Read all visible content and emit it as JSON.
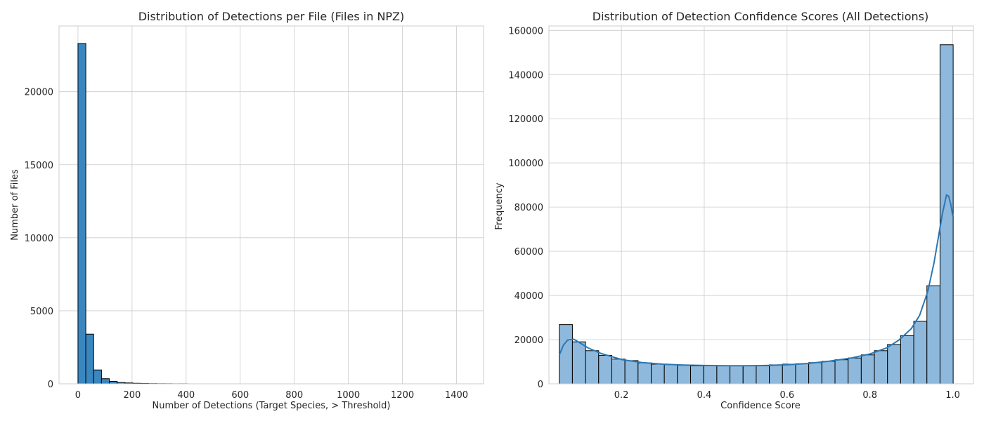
{
  "chart_data": [
    {
      "type": "bar",
      "subtype": "histogram",
      "title": "Distribution of Detections per File (Files in NPZ)",
      "xlabel": "Number of Detections (Target Species, > Threshold)",
      "ylabel": "Number of Files",
      "xlim": [
        -70,
        1500
      ],
      "ylim": [
        0,
        24500
      ],
      "xticks": [
        0,
        200,
        400,
        600,
        800,
        1000,
        1200,
        1400
      ],
      "xtick_labels": [
        "0",
        "200",
        "400",
        "600",
        "800",
        "1000",
        "1200",
        "1400"
      ],
      "yticks": [
        0,
        5000,
        10000,
        15000,
        20000
      ],
      "ytick_labels": [
        "0",
        "5000",
        "10000",
        "15000",
        "20000"
      ],
      "bin_width": 29,
      "bins": [
        {
          "x0": 0,
          "x1": 29,
          "count": 23300
        },
        {
          "x0": 29,
          "x1": 58,
          "count": 3400
        },
        {
          "x0": 58,
          "x1": 87,
          "count": 950
        },
        {
          "x0": 87,
          "x1": 116,
          "count": 350
        },
        {
          "x0": 116,
          "x1": 145,
          "count": 170
        },
        {
          "x0": 145,
          "x1": 174,
          "count": 90
        },
        {
          "x0": 174,
          "x1": 203,
          "count": 60
        },
        {
          "x0": 203,
          "x1": 232,
          "count": 35
        },
        {
          "x0": 232,
          "x1": 261,
          "count": 25
        },
        {
          "x0": 261,
          "x1": 290,
          "count": 15
        },
        {
          "x0": 290,
          "x1": 319,
          "count": 10
        },
        {
          "x0": 319,
          "x1": 348,
          "count": 8
        },
        {
          "x0": 348,
          "x1": 377,
          "count": 4
        },
        {
          "x0": 377,
          "x1": 406,
          "count": 5
        }
      ],
      "grid": true,
      "colors": {
        "bar": "#3a87c0",
        "edge": "#000000"
      }
    },
    {
      "type": "bar",
      "subtype": "histogram",
      "title": "Distribution of Detection Confidence Scores (All Detections)",
      "xlabel": "Confidence Score",
      "ylabel": "Frequency",
      "xlim": [
        0.025,
        1.05
      ],
      "ylim": [
        0,
        162000
      ],
      "xticks": [
        0.2,
        0.4,
        0.6,
        0.8,
        1.0
      ],
      "xtick_labels": [
        "0.2",
        "0.4",
        "0.6",
        "0.8",
        "1.0"
      ],
      "yticks": [
        0,
        20000,
        40000,
        60000,
        80000,
        100000,
        120000,
        140000,
        160000
      ],
      "ytick_labels": [
        "0",
        "20000",
        "40000",
        "60000",
        "80000",
        "100000",
        "120000",
        "140000",
        "160000"
      ],
      "bins_start": 0.05,
      "bin_width": 0.0317,
      "counts": [
        26800,
        19000,
        15000,
        12900,
        11200,
        10500,
        9500,
        8900,
        8700,
        8400,
        8100,
        8100,
        8200,
        8100,
        8100,
        8100,
        8600,
        8900,
        9100,
        9600,
        10200,
        10900,
        11700,
        13100,
        15000,
        17800,
        21800,
        28300,
        44400,
        153500
      ],
      "kde": {
        "x": [
          0.05,
          0.06,
          0.07,
          0.085,
          0.1,
          0.12,
          0.15,
          0.2,
          0.25,
          0.3,
          0.35,
          0.4,
          0.45,
          0.5,
          0.55,
          0.6,
          0.65,
          0.7,
          0.75,
          0.8,
          0.84,
          0.87,
          0.9,
          0.92,
          0.94,
          0.955,
          0.965,
          0.975,
          0.985,
          0.99,
          0.995,
          1.0
        ],
        "y": [
          13000,
          17500,
          19800,
          20200,
          18500,
          16200,
          13800,
          11000,
          9600,
          8900,
          8500,
          8300,
          8200,
          8200,
          8300,
          8600,
          9200,
          10200,
          11500,
          13500,
          16200,
          19800,
          25000,
          31000,
          42000,
          55000,
          66000,
          77000,
          85500,
          85000,
          81500,
          76000
        ]
      },
      "grid": true,
      "colors": {
        "bar": "#8fb9dc",
        "edge": "#000000",
        "kde": "#2a78b5"
      }
    }
  ]
}
